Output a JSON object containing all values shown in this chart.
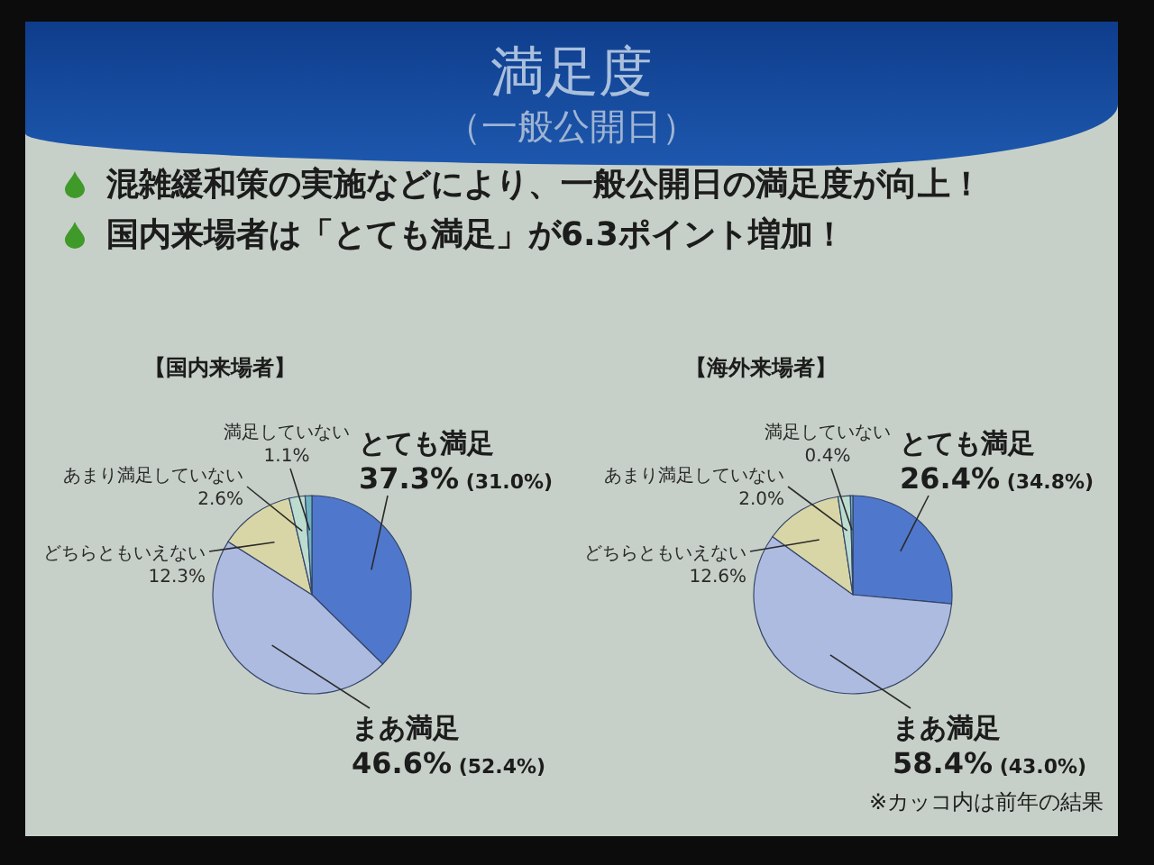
{
  "chart_data": [
    {
      "type": "other",
      "title": "満足度",
      "subtitle": "（一般公開日）",
      "annotations": [
        "混雑緩和策の実施などにより、一般公開日の満足度が向上！",
        "国内来場者は「とても満足」が6.3ポイント増加！"
      ]
    },
    {
      "type": "pie",
      "title": "【国内来場者】",
      "categories": [
        "とても満足",
        "まあ満足",
        "どちらともいえない",
        "あまり満足していない",
        "満足していない"
      ],
      "values": [
        37.3,
        46.6,
        12.3,
        2.6,
        1.1
      ],
      "colors": [
        "#4f78cc",
        "#aebbe0",
        "#d8d6a6",
        "#bcdccf",
        "#6fb3bf"
      ],
      "value_labels": [
        "37.3% (31.0%)",
        "46.6% (52.4%)",
        "12.3%",
        "2.6%",
        "1.1%"
      ]
    },
    {
      "type": "pie",
      "title": "【海外来場者】",
      "categories": [
        "とても満足",
        "まあ満足",
        "どちらともいえない",
        "あまり満足していない",
        "満足していない"
      ],
      "values": [
        26.4,
        58.4,
        12.6,
        2.0,
        0.4
      ],
      "colors": [
        "#4f78cc",
        "#aebbe0",
        "#d8d6a6",
        "#bcdccf",
        "#6fb3bf"
      ],
      "value_labels": [
        "26.4% (34.8%)",
        "58.4% (43.0%)",
        "12.6%",
        "2.0%",
        "0.4%"
      ],
      "annotations": [
        "※カッコ内は前年の結果"
      ]
    }
  ]
}
